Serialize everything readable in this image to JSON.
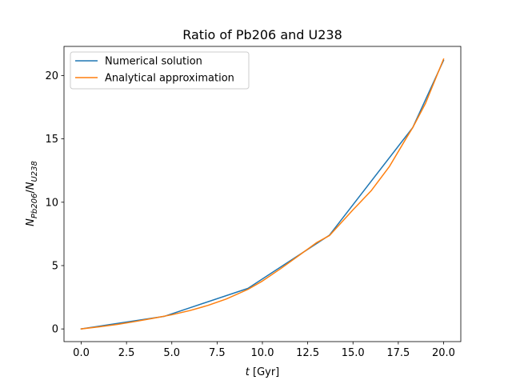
{
  "chart_data": {
    "type": "line",
    "title": "Ratio of Pb206 and U238",
    "xlabel": "t [Gyr]",
    "ylabel": "N_Pb206 / N_U238",
    "xlim": [
      -0.95,
      20.95
    ],
    "ylim": [
      -1.0,
      22.3
    ],
    "xticks": [
      0.0,
      2.5,
      5.0,
      7.5,
      10.0,
      12.5,
      15.0,
      17.5,
      20.0
    ],
    "xtick_labels": [
      "0.0",
      "2.5",
      "5.0",
      "7.5",
      "10.0",
      "12.5",
      "15.0",
      "17.5",
      "20.0"
    ],
    "yticks": [
      0,
      5,
      10,
      15,
      20
    ],
    "ytick_labels": [
      "0",
      "5",
      "10",
      "15",
      "20"
    ],
    "grid": false,
    "legend_position": "top-left",
    "series": [
      {
        "name": "Numerical solution",
        "color": "#1f77b4",
        "x": [
          0.0,
          4.6,
          9.2,
          13.7,
          18.3,
          20.0
        ],
        "y": [
          0.0,
          1.0,
          3.2,
          7.4,
          15.9,
          21.2
        ]
      },
      {
        "name": "Analytical approximation",
        "color": "#ff7f0e",
        "x": [
          0.0,
          1.0,
          2.0,
          3.0,
          4.0,
          5.0,
          6.0,
          7.0,
          8.0,
          9.2,
          10.0,
          11.0,
          12.0,
          13.0,
          13.7,
          15.0,
          16.0,
          17.0,
          18.0,
          18.3,
          19.0,
          20.0
        ],
        "y": [
          0.0,
          0.17,
          0.36,
          0.59,
          0.85,
          1.12,
          1.45,
          1.86,
          2.36,
          3.12,
          3.78,
          4.75,
          5.78,
          6.82,
          7.37,
          9.4,
          10.9,
          12.8,
          15.2,
          15.9,
          17.8,
          21.3
        ]
      }
    ]
  }
}
